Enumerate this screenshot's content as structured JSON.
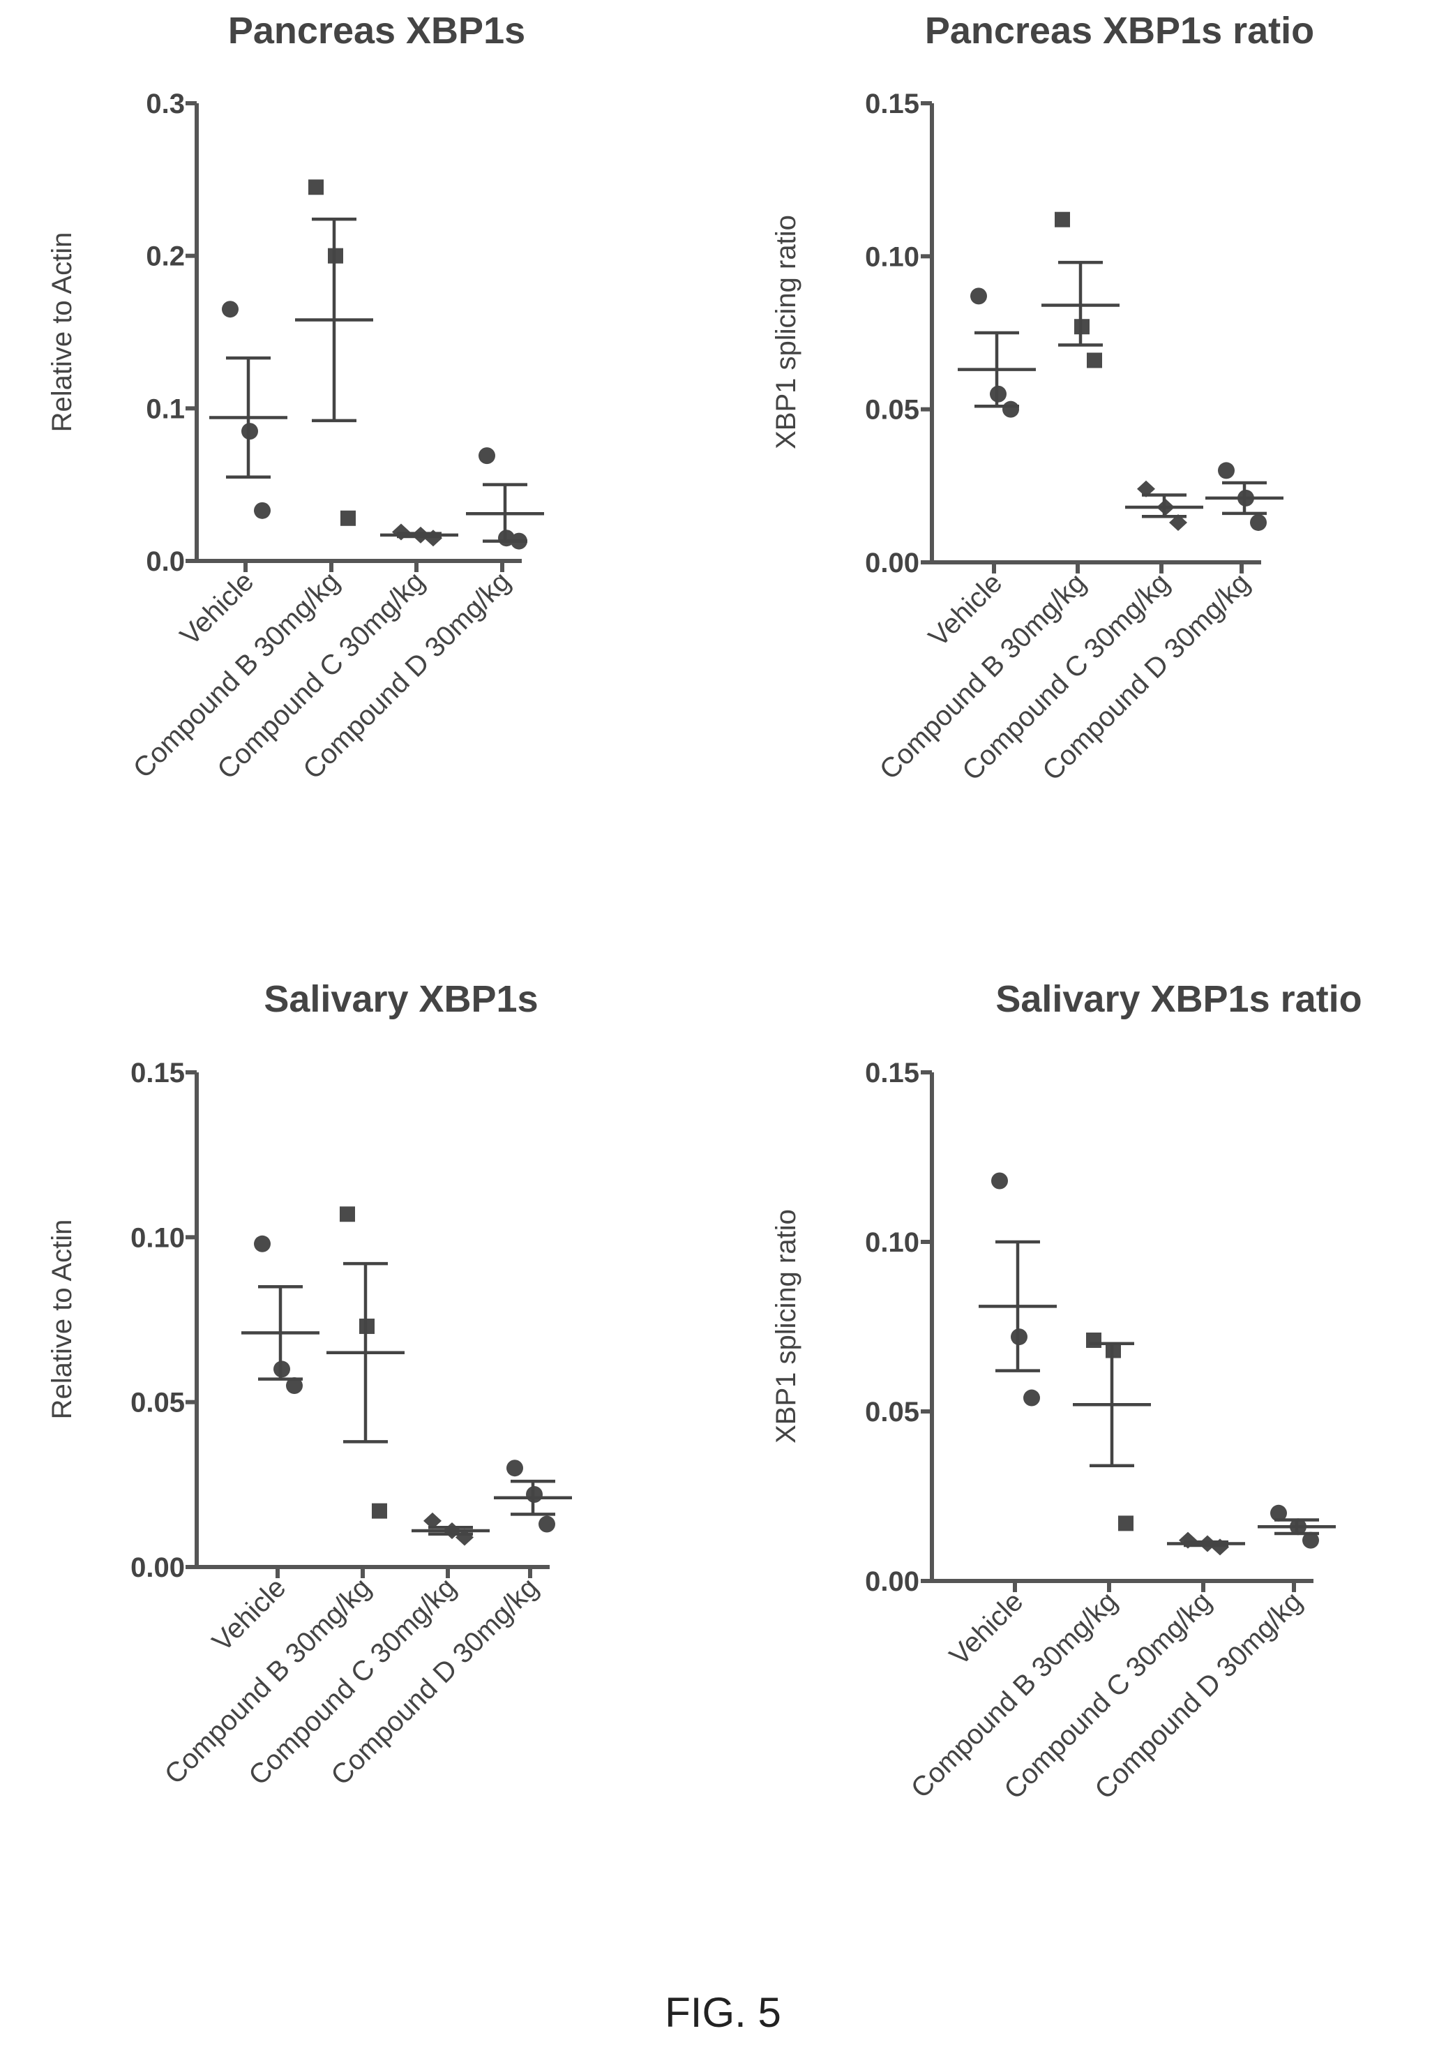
{
  "figure": {
    "caption": "FIG. 5"
  },
  "colors": {
    "ink": "#444444",
    "marker": "#4a4a4a"
  },
  "chart_data": [
    {
      "type": "scatter",
      "title": "Pancreas XBP1s",
      "ylabel": "Relative to Actin",
      "ylim": [
        0,
        0.3
      ],
      "yticks": [
        "0.0",
        "0.1",
        "0.2",
        "0.3"
      ],
      "categories": [
        "Vehicle",
        "Compound B 30mg/kg",
        "Compound C 30mg/kg",
        "Compound D 30mg/kg"
      ],
      "groups": [
        {
          "marker": "circle",
          "points": [
            0.165,
            0.085,
            0.033
          ],
          "mean": 0.094,
          "sem": [
            0.055,
            0.133
          ]
        },
        {
          "marker": "square",
          "points": [
            0.245,
            0.2,
            0.028
          ],
          "mean": 0.158,
          "sem": [
            0.092,
            0.224
          ]
        },
        {
          "marker": "diamond",
          "points": [
            0.019,
            0.017,
            0.015
          ],
          "mean": 0.017,
          "sem": [
            0.016,
            0.018
          ]
        },
        {
          "marker": "circle",
          "points": [
            0.069,
            0.015,
            0.013
          ],
          "mean": 0.031,
          "sem": [
            0.013,
            0.05
          ]
        }
      ]
    },
    {
      "type": "scatter",
      "title": "Pancreas XBP1s ratio",
      "ylabel": "XBP1 splicing ratio",
      "ylim": [
        0,
        0.15
      ],
      "yticks": [
        "0.00",
        "0.05",
        "0.10",
        "0.15"
      ],
      "categories": [
        "Vehicle",
        "Compound B 30mg/kg",
        "Compound C 30mg/kg",
        "Compound D 30mg/kg"
      ],
      "groups": [
        {
          "marker": "circle",
          "points": [
            0.087,
            0.055,
            0.05
          ],
          "mean": 0.063,
          "sem": [
            0.051,
            0.075
          ]
        },
        {
          "marker": "square",
          "points": [
            0.112,
            0.077,
            0.066
          ],
          "mean": 0.084,
          "sem": [
            0.071,
            0.098
          ]
        },
        {
          "marker": "diamond",
          "points": [
            0.024,
            0.018,
            0.013
          ],
          "mean": 0.018,
          "sem": [
            0.015,
            0.022
          ]
        },
        {
          "marker": "circle",
          "points": [
            0.03,
            0.021,
            0.013
          ],
          "mean": 0.021,
          "sem": [
            0.016,
            0.026
          ]
        }
      ]
    },
    {
      "type": "scatter",
      "title": "Salivary XBP1s",
      "ylabel": "Relative to Actin",
      "ylim": [
        0,
        0.15
      ],
      "yticks": [
        "0.00",
        "0.05",
        "0.10",
        "0.15"
      ],
      "categories": [
        "Vehicle",
        "Compound B 30mg/kg",
        "Compound C 30mg/kg",
        "Compound D 30mg/kg"
      ],
      "groups": [
        {
          "marker": "circle",
          "points": [
            0.098,
            0.06,
            0.055
          ],
          "mean": 0.071,
          "sem": [
            0.057,
            0.085
          ]
        },
        {
          "marker": "square",
          "points": [
            0.107,
            0.073,
            0.017
          ],
          "mean": 0.065,
          "sem": [
            0.038,
            0.092
          ]
        },
        {
          "marker": "diamond",
          "points": [
            0.014,
            0.011,
            0.009
          ],
          "mean": 0.011,
          "sem": [
            0.01,
            0.012
          ]
        },
        {
          "marker": "circle",
          "points": [
            0.03,
            0.022,
            0.013
          ],
          "mean": 0.021,
          "sem": [
            0.016,
            0.026
          ]
        }
      ]
    },
    {
      "type": "scatter",
      "title": "Salivary XBP1s ratio",
      "ylabel": "XBP1 splicing ratio",
      "ylim": [
        0,
        0.15
      ],
      "yticks": [
        "0.00",
        "0.05",
        "0.10",
        "0.15"
      ],
      "categories": [
        "Vehicle",
        "Compound B 30mg/kg",
        "Compound C 30mg/kg",
        "Compound D 30mg/kg"
      ],
      "groups": [
        {
          "marker": "circle",
          "points": [
            0.118,
            0.072,
            0.054
          ],
          "mean": 0.081,
          "sem": [
            0.062,
            0.1
          ]
        },
        {
          "marker": "square",
          "points": [
            0.071,
            0.068,
            0.017
          ],
          "mean": 0.052,
          "sem": [
            0.034,
            0.07
          ]
        },
        {
          "marker": "diamond",
          "points": [
            0.012,
            0.011,
            0.01
          ],
          "mean": 0.011,
          "sem": [
            0.0105,
            0.0115
          ]
        },
        {
          "marker": "circle",
          "points": [
            0.02,
            0.016,
            0.012
          ],
          "mean": 0.016,
          "sem": [
            0.014,
            0.018
          ]
        }
      ]
    }
  ]
}
